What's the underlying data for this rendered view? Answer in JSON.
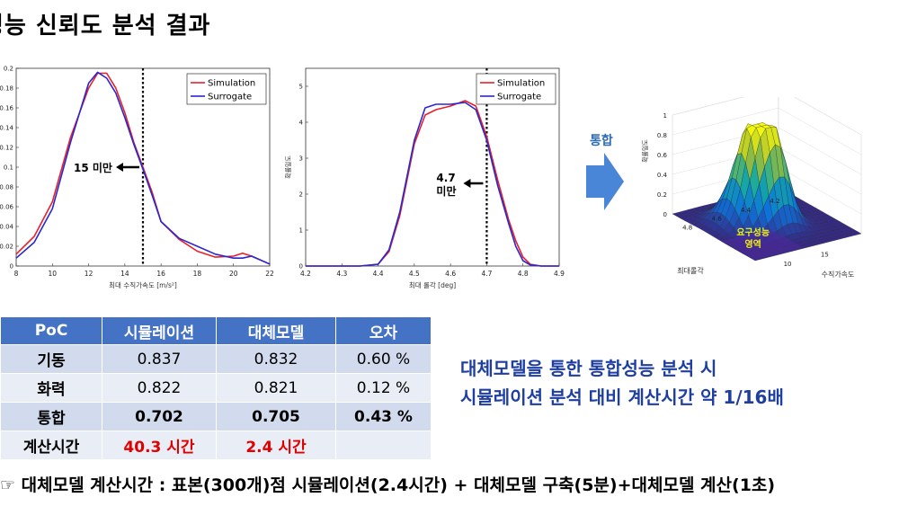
{
  "page": {
    "title": "성능 신뢰도 분석 결과",
    "arrow_label": "통합",
    "summary_line1": "대체모델을 통한 통합성능 분석 시",
    "summary_line2": "시뮬레이션 분석 대비 계산시간 약 1/16배",
    "footnote": "☞ 대체모델 계산시간 : 표본(300개)점 시뮬레이션(2.4시간) + 대체모델 구축(5분)+대체모델 계산(1초)",
    "colors": {
      "simulation": "#e8202a",
      "surrogate": "#2828d0",
      "table_header": "#4472c4",
      "summary_text": "#1f3fa0",
      "highlight_red": "#e00000",
      "arrow": "#4a86d8"
    }
  },
  "table": {
    "headers": [
      "PoC",
      "시뮬레이션",
      "대체모델",
      "오차"
    ],
    "rows": [
      [
        "기동",
        "0.837",
        "0.832",
        "0.60 %"
      ],
      [
        "화력",
        "0.822",
        "0.821",
        "0.12 %"
      ],
      [
        "통합",
        "0.702",
        "0.705",
        "0.43 %"
      ],
      [
        "계산시간",
        "40.3 시간",
        "2.4 시간",
        ""
      ]
    ]
  },
  "chart_data": [
    {
      "type": "line",
      "xlabel": "최대 수직가속도 [m/s²]",
      "ylabel": "",
      "xlim": [
        8,
        22
      ],
      "ylim": [
        0,
        0.2
      ],
      "xticks": [
        "8",
        "10",
        "12",
        "14",
        "16",
        "18",
        "20",
        "22"
      ],
      "yticks": [
        "0",
        "0.02",
        "0.04",
        "0.06",
        "0.08",
        "0.1",
        "0.12",
        "0.14",
        "0.16",
        "0.18",
        "0.2"
      ],
      "threshold": {
        "x": 15,
        "label": "15 미만"
      },
      "legend": "top-right",
      "series": [
        {
          "name": "Simulation",
          "x": [
            8,
            9,
            10,
            11,
            12,
            12.5,
            13,
            13.5,
            14,
            14.5,
            15,
            15.5,
            16,
            17,
            18,
            19,
            20,
            20.5,
            21,
            22
          ],
          "y": [
            0.012,
            0.03,
            0.065,
            0.13,
            0.18,
            0.195,
            0.195,
            0.18,
            0.155,
            0.125,
            0.1,
            0.075,
            0.045,
            0.027,
            0.015,
            0.009,
            0.01,
            0.013,
            0.01,
            0.002
          ]
        },
        {
          "name": "Surrogate",
          "x": [
            8,
            9,
            10,
            11,
            12,
            12.5,
            13,
            13.5,
            14,
            14.5,
            15,
            15.5,
            16,
            17,
            18,
            19,
            20,
            20.5,
            21,
            22
          ],
          "y": [
            0.008,
            0.024,
            0.058,
            0.125,
            0.185,
            0.196,
            0.19,
            0.175,
            0.15,
            0.123,
            0.098,
            0.072,
            0.045,
            0.028,
            0.02,
            0.012,
            0.008,
            0.008,
            0.01,
            0.002
          ]
        }
      ]
    },
    {
      "type": "line",
      "xlabel": "최대 롤각 [deg]",
      "ylabel": "확률밀도",
      "xlim": [
        4.2,
        4.9
      ],
      "ylim": [
        0,
        5.5
      ],
      "xticks": [
        "4.2",
        "4.3",
        "4.4",
        "4.5",
        "4.6",
        "4.7",
        "4.8",
        "4.9"
      ],
      "yticks": [
        "0",
        "1",
        "2",
        "3",
        "4",
        "5"
      ],
      "threshold": {
        "x": 4.7,
        "label_line1": "4.7",
        "label_line2": "미만"
      },
      "legend": "top-right",
      "series": [
        {
          "name": "Simulation",
          "x": [
            4.2,
            4.35,
            4.4,
            4.43,
            4.46,
            4.5,
            4.53,
            4.56,
            4.6,
            4.64,
            4.67,
            4.7,
            4.73,
            4.76,
            4.78,
            4.8,
            4.82,
            4.85,
            4.9
          ],
          "y": [
            0,
            0,
            0.05,
            0.4,
            1.4,
            3.4,
            4.2,
            4.35,
            4.45,
            4.6,
            4.45,
            3.6,
            2.4,
            1.3,
            0.7,
            0.25,
            0.05,
            0,
            0
          ]
        },
        {
          "name": "Surrogate",
          "x": [
            4.2,
            4.35,
            4.4,
            4.43,
            4.46,
            4.5,
            4.53,
            4.56,
            4.6,
            4.64,
            4.67,
            4.7,
            4.73,
            4.76,
            4.78,
            4.8,
            4.82,
            4.85,
            4.9
          ],
          "y": [
            0,
            0,
            0.05,
            0.45,
            1.5,
            3.5,
            4.4,
            4.5,
            4.5,
            4.55,
            4.35,
            3.5,
            2.25,
            1.2,
            0.55,
            0.15,
            0.03,
            0,
            0
          ]
        }
      ]
    },
    {
      "type": "surface",
      "z_ticks": [
        "0",
        "0.2",
        "0.4",
        "0.6",
        "0.8",
        "1"
      ],
      "roll_ticks": [
        "4.2",
        "4.4",
        "4.6",
        "4.8"
      ],
      "accel_ticks": [
        "10",
        "15"
      ],
      "roll_axis_label": "최대롤각",
      "accel_axis_label": "수직가속도",
      "z_axis_label": "확률밀도",
      "region_label_line1": "요구성능",
      "region_label_line2": "영역"
    }
  ]
}
